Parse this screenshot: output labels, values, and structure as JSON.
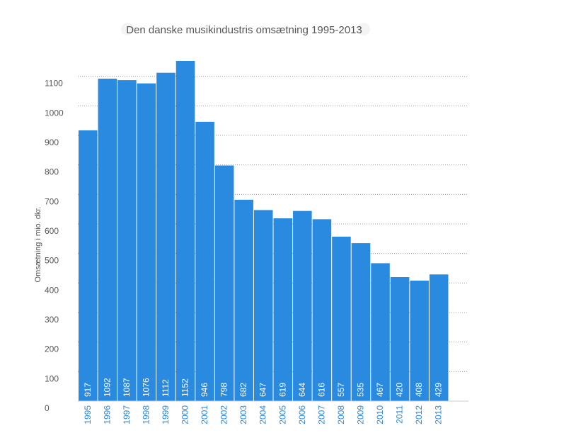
{
  "chart_data": {
    "type": "bar",
    "title": "Den danske musikindustris omsætning 1995-2013",
    "xlabel": "",
    "ylabel": "Omsætning i mio. dkr.",
    "categories": [
      "1995",
      "1996",
      "1997",
      "1998",
      "1999",
      "2000",
      "2001",
      "2002",
      "2003",
      "2004",
      "2005",
      "2006",
      "2007",
      "2008",
      "2009",
      "2010",
      "2011",
      "2012",
      "2013"
    ],
    "values": [
      917,
      1092,
      1087,
      1076,
      1112,
      1152,
      946,
      798,
      682,
      647,
      619,
      644,
      616,
      557,
      535,
      467,
      420,
      408,
      429
    ],
    "data_labels": [
      "917",
      "1092",
      "1087",
      "1076",
      "1112",
      "1152",
      "946",
      "798",
      "682",
      "647",
      "619",
      "644",
      "616",
      "557",
      "535",
      "467",
      "420",
      "408",
      "429"
    ],
    "ylim": [
      0,
      1200
    ],
    "yticks": [
      0,
      100,
      200,
      300,
      400,
      500,
      600,
      700,
      800,
      900,
      1000,
      1100
    ],
    "ytick_labels": [
      "0",
      "100",
      "200",
      "300",
      "400",
      "500",
      "600",
      "700",
      "800",
      "900",
      "1000",
      "1100"
    ],
    "grid": true,
    "legend": "none",
    "colors": {
      "bar": "#2a8ae0",
      "axis_label": "#2a8ae0",
      "text": "#555555",
      "grid": "#999999"
    }
  }
}
